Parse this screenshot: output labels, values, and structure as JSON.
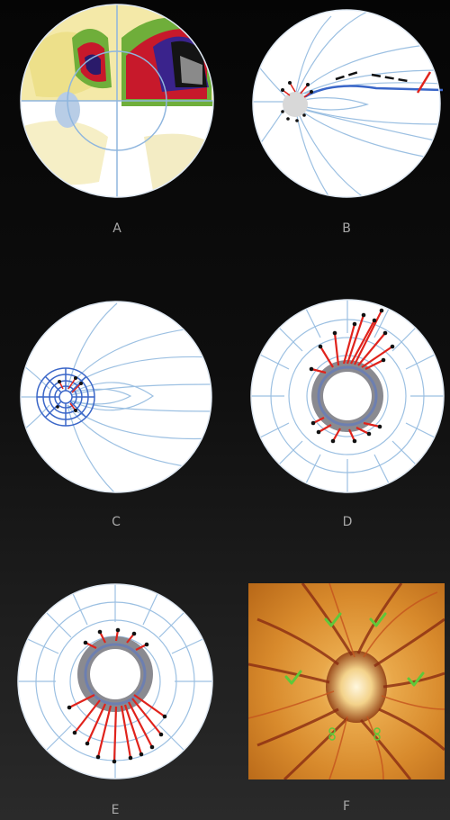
{
  "figure": {
    "panels": [
      {
        "id": "A",
        "label": "A",
        "description_icon": "visual-field-map"
      },
      {
        "id": "B",
        "label": "B",
        "description_icon": "nerve-fiber-trace"
      },
      {
        "id": "C",
        "label": "C",
        "description_icon": "disc-sector-grid"
      },
      {
        "id": "D",
        "label": "D",
        "description_icon": "disc-projection-superior"
      },
      {
        "id": "E",
        "label": "E",
        "description_icon": "disc-projection-inferior"
      },
      {
        "id": "F",
        "label": "F",
        "description_icon": "fundus-photo"
      }
    ],
    "colors": {
      "background": "#0a0a0a",
      "disc_fill": "#ffffff",
      "trace_line": "#a8c8e8",
      "fiber_highlight": "#3a66c8",
      "red_marker": "#e0231c",
      "ring_gray": "#8a8a90",
      "check_green": "#5ec83a",
      "fundus_orange": "#e2a03a"
    }
  }
}
